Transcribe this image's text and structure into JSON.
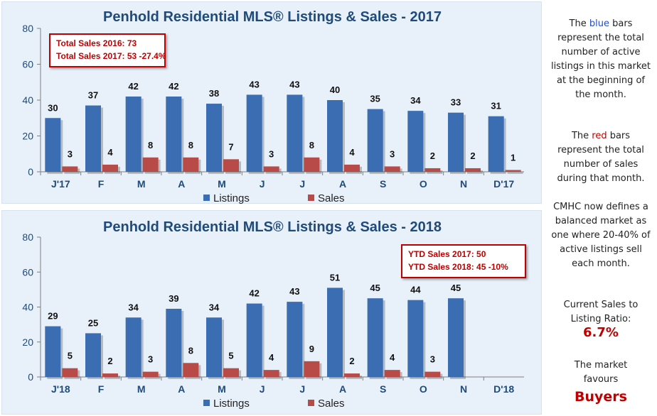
{
  "charts": [
    {
      "id": "2017",
      "title": "Penhold Residential MLS® Listings & Sales - 2017",
      "callout": [
        "Total Sales 2016: 73",
        "Total Sales 2017: 53  -27.4%"
      ]
    },
    {
      "id": "2018",
      "title": "Penhold Residential MLS® Listings & Sales - 2018",
      "callout": [
        "YTD Sales 2017: 50",
        "YTD Sales 2018: 45   -10%"
      ]
    }
  ],
  "colors": {
    "listings": "#3b6db3",
    "sales": "#b84a47",
    "title": "#1f4a7a",
    "accent_red": "#c00000",
    "accent_blue": "#1f4fc8"
  },
  "chart_data": [
    {
      "type": "bar",
      "title": "Penhold Residential MLS® Listings & Sales - 2017",
      "categories": [
        "J'17",
        "F",
        "M",
        "A",
        "M",
        "J",
        "J",
        "A",
        "S",
        "O",
        "N",
        "D'17"
      ],
      "series": [
        {
          "name": "Listings",
          "values": [
            30,
            37,
            42,
            42,
            38,
            43,
            43,
            40,
            35,
            34,
            33,
            31
          ]
        },
        {
          "name": "Sales",
          "values": [
            3,
            4,
            8,
            8,
            7,
            3,
            8,
            4,
            3,
            2,
            2,
            1
          ]
        }
      ],
      "yticks": [
        0,
        20,
        40,
        60,
        80
      ],
      "ylim": [
        0,
        80
      ],
      "legend": "bottom"
    },
    {
      "type": "bar",
      "title": "Penhold Residential MLS® Listings & Sales - 2018",
      "categories": [
        "J'18",
        "F",
        "M",
        "A",
        "M",
        "J",
        "J",
        "A",
        "S",
        "O",
        "N",
        "D'18"
      ],
      "series": [
        {
          "name": "Listings",
          "values": [
            29,
            25,
            34,
            39,
            34,
            42,
            43,
            51,
            45,
            44,
            45,
            null
          ]
        },
        {
          "name": "Sales",
          "values": [
            5,
            2,
            3,
            8,
            5,
            4,
            9,
            2,
            4,
            3,
            null,
            null
          ]
        }
      ],
      "yticks": [
        0,
        20,
        40,
        60,
        80
      ],
      "ylim": [
        0,
        80
      ],
      "legend": "bottom"
    }
  ],
  "sidebar": {
    "p1": {
      "pre": "The ",
      "blue_word": "blue",
      "post": " bars represent the total number of active listings in this market at the beginning of the month."
    },
    "p2": {
      "pre": "The ",
      "red_word": "red",
      "post": " bars represent the total number of sales during that month."
    },
    "p3": "CMHC now defines a balanced market as one where 20-40% of active listings sell each month.",
    "ratio_label": "Current Sales to Listing Ratio:",
    "ratio_value": "6.7%",
    "favours_label": "The market favours",
    "favours_value": "Buyers"
  }
}
